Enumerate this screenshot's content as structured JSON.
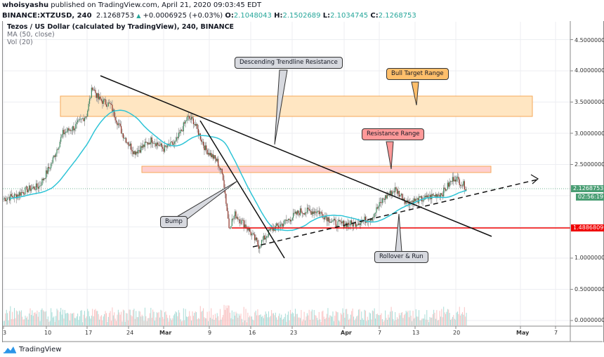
{
  "header": {
    "author": "whoisyashu",
    "published_text": " published on TradingView.com, April 21, 2020 09:03:45 EDT",
    "symbol": "BINANCE:XTZUSD, 240",
    "last": "2.1268753",
    "change": "+0.0006925 (+0.03%)",
    "ohlc": [
      {
        "k": "O:",
        "v": "2.1048043"
      },
      {
        "k": "H:",
        "v": "2.1502689"
      },
      {
        "k": "L:",
        "v": "2.1034745"
      },
      {
        "k": "C:",
        "v": "2.1268753"
      }
    ]
  },
  "legend": {
    "title": "Tezos / US Dollar (calculated by TradingView), 240, BINANCE",
    "ma": "MA (50, close)",
    "vol": "Vol (20)"
  },
  "price_axis": {
    "labels": [
      "4.5000000",
      "4.0000000",
      "3.5000000",
      "3.0000000",
      "2.5000000",
      "1.0000000",
      "0.5000000",
      "0.0000000"
    ],
    "current_price": "2.1268753",
    "countdown": "02:56:19",
    "level_label": "1.4886809",
    "colors": {
      "current": "#4a9e74",
      "level": "#f00000"
    }
  },
  "time_axis": {
    "labels": [
      "3",
      "10",
      "17",
      "24",
      "Mar",
      "9",
      "16",
      "23",
      "Apr",
      "7",
      "13",
      "20",
      "May",
      "7"
    ]
  },
  "annotations": {
    "descending": "Descending Trendline Resistance",
    "bull_target": "Bull Target Range",
    "resistance": "Resistance Range",
    "bump": "Bump",
    "rollover": "Rollover & Run"
  },
  "branding": {
    "logo_text": "TradingView"
  },
  "chart_data": {
    "type": "candlestick",
    "title": "Tezos / US Dollar (calculated by TradingView), 240, BINANCE",
    "symbol": "BINANCE:XTZUSD",
    "interval": "240",
    "xlabel": "",
    "ylabel": "",
    "ylim": [
      0,
      4.8
    ],
    "x_ticks": [
      "3",
      "10",
      "17",
      "24",
      "Mar",
      "9",
      "16",
      "23",
      "Apr",
      "7",
      "13",
      "20",
      "May",
      "7"
    ],
    "y_ticks": [
      0,
      0.5,
      1.0,
      1.5,
      2.0,
      2.5,
      3.0,
      3.5,
      4.0,
      4.5
    ],
    "grid": true,
    "approx_close_path": {
      "dates": [
        "Feb 3",
        "Feb 5",
        "Feb 7",
        "Feb 9",
        "Feb 11",
        "Feb 13",
        "Feb 15",
        "Feb 17",
        "Feb 18",
        "Feb 19",
        "Feb 21",
        "Feb 23",
        "Feb 25",
        "Feb 26",
        "Feb 28",
        "Mar 1",
        "Mar 3",
        "Mar 5",
        "Mar 6",
        "Mar 8",
        "Mar 10",
        "Mar 11",
        "Mar 12",
        "Mar 13",
        "Mar 15",
        "Mar 17",
        "Mar 19",
        "Mar 21",
        "Mar 24",
        "Mar 27",
        "Mar 30",
        "Apr 2",
        "Apr 5",
        "Apr 7",
        "Apr 9",
        "Apr 11",
        "Apr 14",
        "Apr 17",
        "Apr 19",
        "Apr 21"
      ],
      "close": [
        1.95,
        2.0,
        2.1,
        2.15,
        2.5,
        3.0,
        3.1,
        3.3,
        3.75,
        3.55,
        3.45,
        3.0,
        2.7,
        2.75,
        2.9,
        2.75,
        2.85,
        3.25,
        3.2,
        2.75,
        2.55,
        2.3,
        1.5,
        1.7,
        1.5,
        1.2,
        1.45,
        1.55,
        1.75,
        1.75,
        1.55,
        1.55,
        1.65,
        1.95,
        2.1,
        1.9,
        1.95,
        2.05,
        2.3,
        2.13
      ]
    },
    "series": [
      {
        "name": "MA (50, close)",
        "color": "#2ec4d6"
      },
      {
        "name": "Vol (20)",
        "type": "bar"
      }
    ],
    "drawings": {
      "bull_target_range": [
        3.28,
        3.6
      ],
      "resistance_range": [
        2.37,
        2.46
      ],
      "horizontal_level": 1.4886809,
      "descending_trendline": {
        "from": [
          "Feb 18",
          3.95
        ],
        "to": [
          "Apr 29",
          1.35
        ]
      },
      "bump_trendline": {
        "from": [
          "Mar 6",
          3.25
        ],
        "to": [
          "Mar 18",
          1.0
        ]
      },
      "rising_support_dashed": {
        "from": [
          "Mar 16",
          1.2
        ],
        "to": [
          "May 3",
          2.3
        ]
      }
    },
    "last_price": 2.1268753
  }
}
